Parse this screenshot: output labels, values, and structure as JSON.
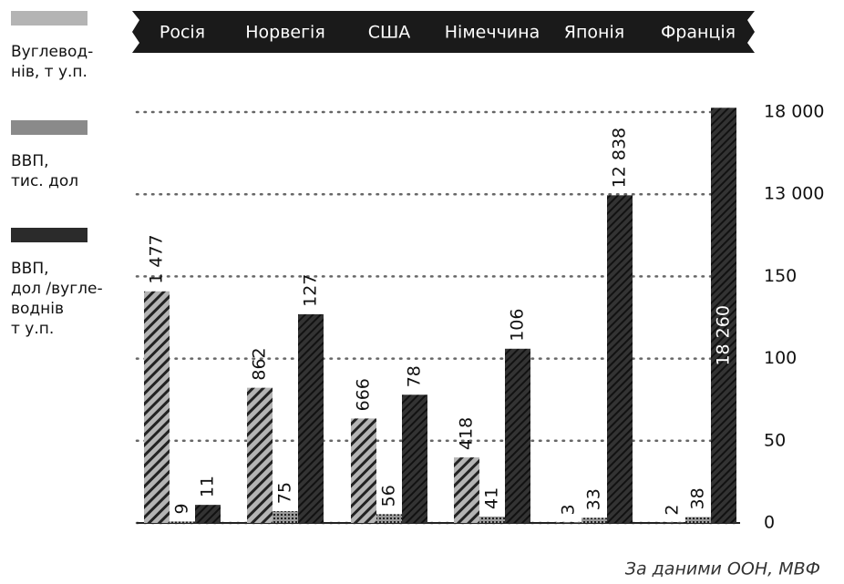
{
  "chart_data": {
    "type": "bar",
    "categories": [
      "Росія",
      "Норвегія",
      "США",
      "Німеччина",
      "Японія",
      "Франція"
    ],
    "series": [
      {
        "name": "Вуглевод-\nнів, т у.п.",
        "color": "#b4b4b4",
        "axis": "y2",
        "values": [
          1477,
          862,
          666,
          418,
          3,
          2
        ],
        "value_labels": [
          "1 477",
          "862",
          "666",
          "418",
          "3",
          "2"
        ]
      },
      {
        "name": "ВВП,\nтис. дол",
        "color": "#8a8a8a",
        "axis": "y2",
        "values": [
          9,
          75,
          56,
          41,
          33,
          38
        ],
        "value_labels": [
          "9",
          "75",
          "56",
          "41",
          "33",
          "38"
        ]
      },
      {
        "name": "ВВП,\nдол /вугле-\nводнів\nт у.п.",
        "color": "#2b2b2b",
        "values": [
          11,
          127,
          78,
          106,
          12838,
          18260
        ],
        "value_labels": [
          "11",
          "127",
          "78",
          "106",
          "12 838",
          "18 260"
        ]
      }
    ],
    "ylim": [
      0,
      18000
    ],
    "yticks": [
      0,
      50,
      100,
      150,
      {
        "value": 13000,
        "label": "13 000"
      },
      {
        "value": 18000,
        "label": "18 000"
      }
    ],
    "y2lim": [
      0,
      1650
    ],
    "grid": true,
    "source": "За даними ООН, МВФ"
  }
}
